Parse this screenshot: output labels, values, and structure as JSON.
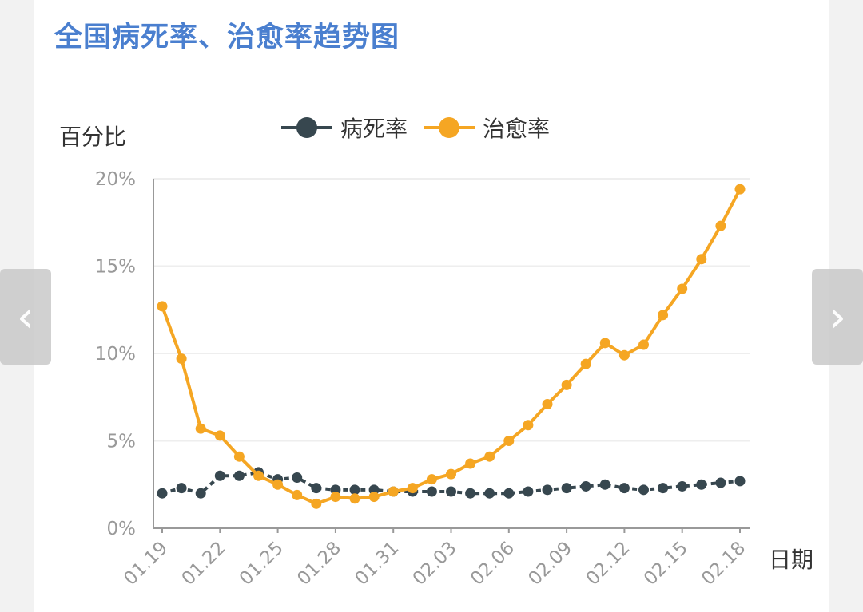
{
  "title": "全国病死率、治愈率趋势图",
  "nav": {
    "prev_icon": "‹",
    "next_icon": "›"
  },
  "colors": {
    "title": "#4a7fcf",
    "death": "#37474f",
    "cure": "#f5a623",
    "grid": "#eeeeee",
    "axis": "#999999"
  },
  "chart_data": {
    "type": "line",
    "ylabel": "百分比",
    "xlabel": "日期",
    "ylim": [
      0,
      20
    ],
    "yticks": [
      "0%",
      "5%",
      "10%",
      "15%",
      "20%"
    ],
    "ytick_values": [
      0,
      5,
      10,
      15,
      20
    ],
    "xticks": [
      "01.19",
      "01.22",
      "01.25",
      "01.28",
      "01.31",
      "02.03",
      "02.06",
      "02.09",
      "02.12",
      "02.15",
      "02.18"
    ],
    "x": [
      "01.19",
      "01.20",
      "01.21",
      "01.22",
      "01.23",
      "01.24",
      "01.25",
      "01.26",
      "01.27",
      "01.28",
      "01.29",
      "01.30",
      "01.31",
      "02.01",
      "02.02",
      "02.03",
      "02.04",
      "02.05",
      "02.06",
      "02.07",
      "02.08",
      "02.09",
      "02.10",
      "02.11",
      "02.12",
      "02.13",
      "02.14",
      "02.15",
      "02.16",
      "02.17",
      "02.18"
    ],
    "legend_position": "top",
    "grid": true,
    "series": [
      {
        "name": "病死率",
        "color": "#37474f",
        "values": [
          2.0,
          2.3,
          2.0,
          3.0,
          3.0,
          3.2,
          2.8,
          2.9,
          2.3,
          2.2,
          2.2,
          2.2,
          2.1,
          2.1,
          2.1,
          2.1,
          2.0,
          2.0,
          2.0,
          2.1,
          2.2,
          2.3,
          2.4,
          2.5,
          2.3,
          2.2,
          2.3,
          2.4,
          2.5,
          2.6,
          2.7
        ]
      },
      {
        "name": "治愈率",
        "color": "#f5a623",
        "values": [
          12.7,
          9.7,
          5.7,
          5.3,
          4.1,
          3.0,
          2.5,
          1.9,
          1.4,
          1.8,
          1.7,
          1.8,
          2.1,
          2.3,
          2.8,
          3.1,
          3.7,
          4.1,
          5.0,
          5.9,
          7.1,
          8.2,
          9.4,
          10.6,
          9.9,
          10.5,
          12.2,
          13.7,
          15.4,
          17.3,
          19.4
        ]
      }
    ]
  }
}
